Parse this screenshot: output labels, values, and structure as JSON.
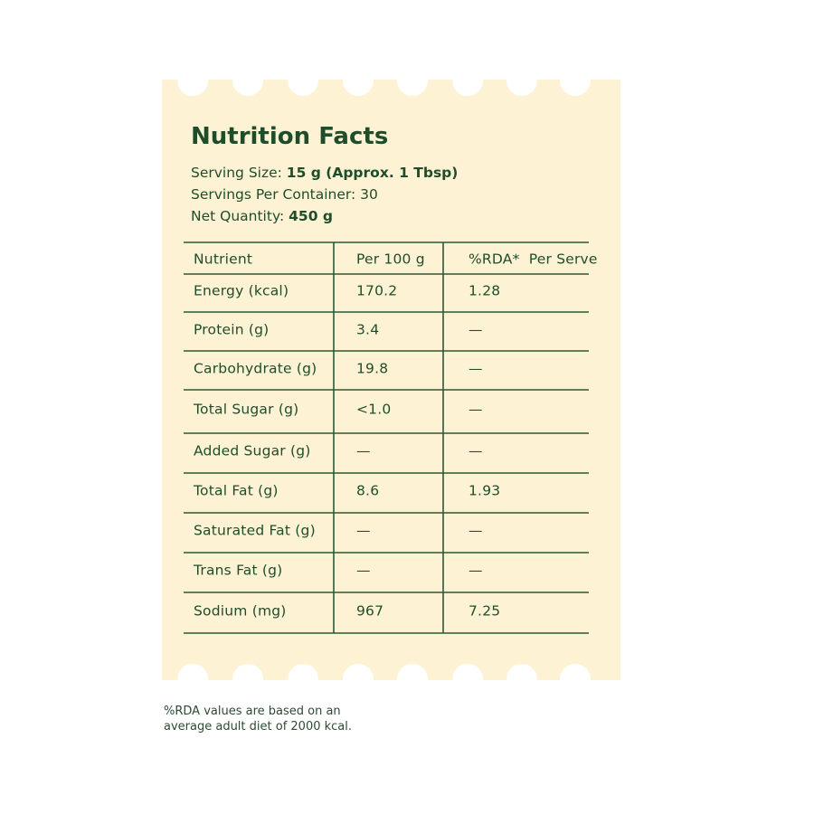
{
  "title": "Nutrition Facts",
  "serving": [
    {
      "label": "Serving Size:",
      "value": "15 g (Approx. 1 Tbsp)",
      "bold": true
    },
    {
      "label": "Servings Per Container:",
      "value": "30",
      "bold": false
    },
    {
      "label": "Net Quantity:",
      "value": "450 g",
      "bold": true
    }
  ],
  "table": {
    "header": [
      "Nutrient",
      "Per 100 g",
      "%RDA*  Per Serve"
    ],
    "rows": [
      [
        "Energy (kcal)",
        "170.2",
        "1.28"
      ],
      [
        "Protein (g)",
        "3.4",
        "—"
      ],
      [
        "Carbohydrate (g)",
        "19.8",
        "—"
      ],
      [
        "Total Sugar (g)",
        "<1.0",
        "—"
      ],
      [
        "Added Sugar (g)",
        "—",
        "—"
      ],
      [
        "Total Fat (g)",
        "8.6",
        "1.93"
      ],
      [
        "Saturated Fat (g)",
        "—",
        "—"
      ],
      [
        "Trans Fat (g)",
        "—",
        "—"
      ],
      [
        "Sodium (mg)",
        "967",
        "7.25"
      ]
    ]
  },
  "footnote": [
    "%RDA values are based on an",
    "average adult diet of 2000 kcal."
  ]
}
